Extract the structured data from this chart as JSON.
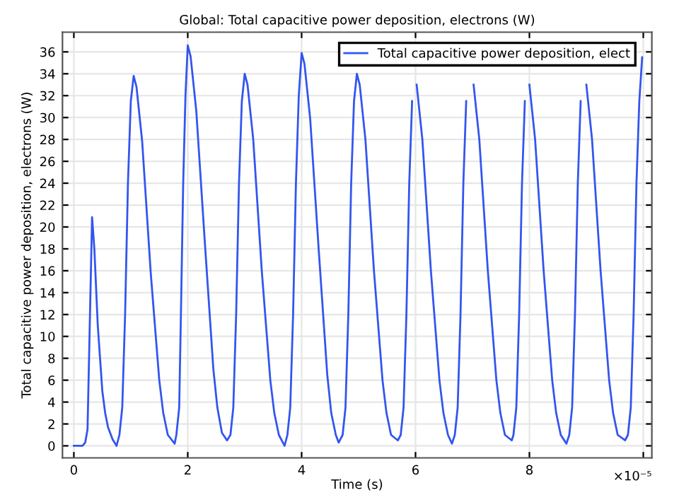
{
  "chart_data": {
    "type": "line",
    "title": "Global: Total capacitive power deposition, electrons (W)",
    "xlabel": "Time (s)",
    "ylabel": "Total capacitive power deposition, electrons (W)",
    "annotations": [
      "×10⁻⁵"
    ],
    "xlim": [
      -0.2,
      10.15
    ],
    "ylim": [
      -1.1,
      37.8
    ],
    "xticks": [
      0,
      2,
      4,
      6,
      8,
      {
        "value": 10,
        "label": null
      }
    ],
    "yticks": [
      0,
      2,
      4,
      6,
      8,
      10,
      12,
      14,
      16,
      18,
      20,
      22,
      24,
      26,
      28,
      30,
      32,
      34,
      36
    ],
    "grid": true,
    "legend": "top right",
    "marker": "none",
    "line_style": "solid",
    "series": [
      {
        "name": "Total capacitive power deposition, elect",
        "color": "#3355ee",
        "x": [
          0,
          0.15,
          0.2,
          0.24,
          0.32,
          0.36,
          0.42,
          0.5,
          0.55,
          0.6,
          0.68,
          0.75,
          0.8,
          0.85,
          0.9,
          0.95,
          1.0,
          1.05,
          1.1,
          1.2,
          1.35,
          1.5,
          1.57,
          1.65,
          1.77,
          1.8,
          1.85,
          1.88,
          1.92,
          1.96,
          2.0,
          2.05,
          2.15,
          2.3,
          2.45,
          2.52,
          2.6,
          2.69,
          2.75,
          2.8,
          2.85,
          2.9,
          2.95,
          3.0,
          3.05,
          3.15,
          3.3,
          3.45,
          3.52,
          3.6,
          3.7,
          3.75,
          3.8,
          3.85,
          3.9,
          3.95,
          4.0,
          4.05,
          4.15,
          4.3,
          4.45,
          4.52,
          4.6,
          4.65,
          4.72,
          4.77,
          4.82,
          4.87,
          4.92,
          4.97,
          5.02,
          5.12,
          5.27,
          5.42,
          5.49,
          5.57,
          5.69,
          5.74,
          5.79,
          5.84,
          5.89,
          5.94,
          5.97,
          6.02,
          6.12,
          6.27,
          6.42,
          6.49,
          6.57,
          6.64,
          6.69,
          6.74,
          6.79,
          6.84,
          6.89,
          6.97,
          7.02,
          7.12,
          7.27,
          7.42,
          7.49,
          7.57,
          7.69,
          7.72,
          7.77,
          7.82,
          7.87,
          7.92,
          7.95,
          8.0,
          8.1,
          8.25,
          8.4,
          8.47,
          8.55,
          8.65,
          8.7,
          8.75,
          8.8,
          8.85,
          8.9,
          8.95,
          9.0,
          9.1,
          9.25,
          9.4,
          9.47,
          9.55,
          9.68,
          9.73,
          9.78,
          9.83,
          9.88,
          9.93,
          9.98
        ],
        "values": [
          0,
          0,
          0.3,
          1.5,
          20.9,
          18,
          11,
          5,
          3,
          1.7,
          0.6,
          0,
          1,
          3.5,
          12,
          24,
          31.5,
          33.8,
          32.8,
          27.8,
          15.8,
          6,
          3,
          1,
          0.2,
          1,
          3.5,
          12,
          24,
          32,
          36.6,
          35.6,
          30.6,
          18.6,
          7,
          3.5,
          1.2,
          0.5,
          1,
          3.5,
          12,
          24,
          31.5,
          34,
          33,
          28,
          16,
          6,
          3,
          1,
          0,
          1,
          3.5,
          12,
          24,
          32,
          35.9,
          34.9,
          29.9,
          17.9,
          6.5,
          3,
          1,
          0.3,
          1,
          3.5,
          12,
          24,
          31.5,
          34,
          33,
          28,
          16,
          6,
          3,
          1,
          0.5,
          1,
          3.5,
          12,
          24,
          31.5,
          null,
          33,
          28,
          16,
          6,
          3,
          1,
          0.2,
          1,
          3.5,
          12,
          24,
          31.5,
          null,
          33,
          28,
          16,
          6,
          3,
          1,
          0.5,
          1,
          3.5,
          12,
          24,
          31.5,
          null,
          33,
          28,
          16,
          6,
          3,
          1,
          0.2,
          1,
          3.5,
          12,
          24,
          31.5,
          null,
          33,
          28,
          16,
          6,
          3,
          1,
          0.5,
          1,
          3.5,
          12,
          24,
          31.5,
          35.5
        ]
      }
    ]
  }
}
